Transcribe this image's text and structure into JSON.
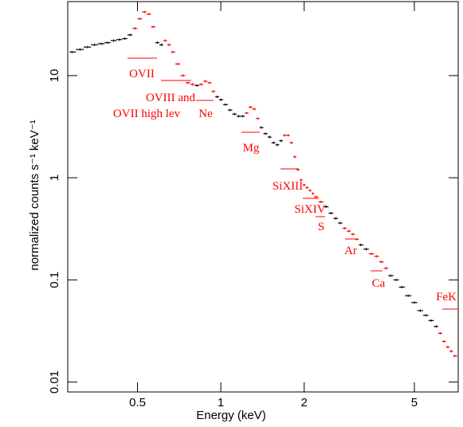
{
  "chart_data": {
    "type": "spectrum",
    "xlabel": "Energy (keV)",
    "ylabel": "normalized counts s⁻¹ keV⁻¹",
    "xscale": "log",
    "yscale": "log",
    "xlim": [
      0.28,
      7.2
    ],
    "ylim": [
      0.008,
      53
    ],
    "xticks": [
      0.5,
      1,
      2,
      5
    ],
    "yticks": [
      0.01,
      0.1,
      1,
      10
    ],
    "x": [
      0.29,
      0.31,
      0.33,
      0.35,
      0.37,
      0.39,
      0.41,
      0.43,
      0.45,
      0.47,
      0.49,
      0.51,
      0.53,
      0.55,
      0.57,
      0.59,
      0.61,
      0.63,
      0.65,
      0.67,
      0.7,
      0.73,
      0.76,
      0.79,
      0.82,
      0.85,
      0.88,
      0.91,
      0.94,
      0.97,
      1.0,
      1.04,
      1.08,
      1.12,
      1.16,
      1.2,
      1.24,
      1.28,
      1.32,
      1.36,
      1.4,
      1.45,
      1.5,
      1.55,
      1.6,
      1.65,
      1.7,
      1.75,
      1.8,
      1.85,
      1.9,
      1.95,
      2.0,
      2.05,
      2.1,
      2.15,
      2.2,
      2.3,
      2.4,
      2.5,
      2.6,
      2.7,
      2.8,
      2.9,
      3.0,
      3.1,
      3.2,
      3.35,
      3.5,
      3.65,
      3.8,
      3.95,
      4.1,
      4.3,
      4.5,
      4.75,
      5.0,
      5.25,
      5.5,
      5.75,
      6.0,
      6.2,
      6.4,
      6.6,
      6.8,
      7.0
    ],
    "series": [
      {
        "color": "#000000",
        "values": [
          17,
          18,
          19,
          20,
          20.5,
          21,
          22,
          22.5,
          23,
          25,
          null,
          null,
          null,
          null,
          null,
          21,
          20,
          null,
          null,
          null,
          null,
          null,
          null,
          null,
          8.0,
          null,
          null,
          null,
          null,
          6.2,
          5.8,
          5.2,
          4.6,
          4.2,
          4.0,
          4.0,
          null,
          null,
          null,
          null,
          3.1,
          2.7,
          2.5,
          2.2,
          2.1,
          2.3,
          null,
          null,
          null,
          null,
          null,
          null,
          null,
          null,
          null,
          null,
          null,
          null,
          0.52,
          0.45,
          0.4,
          0.36,
          null,
          null,
          null,
          null,
          0.22,
          0.2,
          null,
          null,
          null,
          null,
          0.11,
          0.1,
          0.085,
          0.07,
          0.06,
          0.05,
          0.045,
          0.04,
          0.035,
          null,
          null,
          null,
          null,
          null
        ]
      },
      {
        "color": "#ff0000",
        "values": [
          null,
          null,
          null,
          null,
          null,
          null,
          null,
          null,
          null,
          null,
          29,
          36,
          42,
          40,
          30,
          null,
          null,
          22,
          20,
          17,
          13,
          10,
          8.5,
          8.2,
          null,
          8.2,
          8.8,
          8.5,
          7,
          null,
          null,
          null,
          null,
          null,
          null,
          null,
          4.3,
          4.9,
          4.7,
          3.8,
          null,
          null,
          null,
          null,
          null,
          null,
          2.6,
          2.6,
          2.2,
          1.6,
          1.2,
          0.95,
          0.85,
          0.8,
          0.75,
          0.7,
          0.65,
          0.58,
          null,
          null,
          null,
          null,
          0.32,
          0.3,
          0.28,
          0.25,
          null,
          null,
          0.18,
          0.17,
          0.15,
          0.13,
          null,
          null,
          null,
          null,
          null,
          null,
          null,
          null,
          null,
          0.03,
          0.025,
          0.022,
          0.02,
          0.018
        ]
      }
    ],
    "annotations": [
      "OVII",
      "OVIII and",
      "OVII high lev",
      "Ne",
      "Mg",
      "SiXIII",
      "SiXIV",
      "S",
      "Ar",
      "Ca",
      "FeK"
    ]
  }
}
